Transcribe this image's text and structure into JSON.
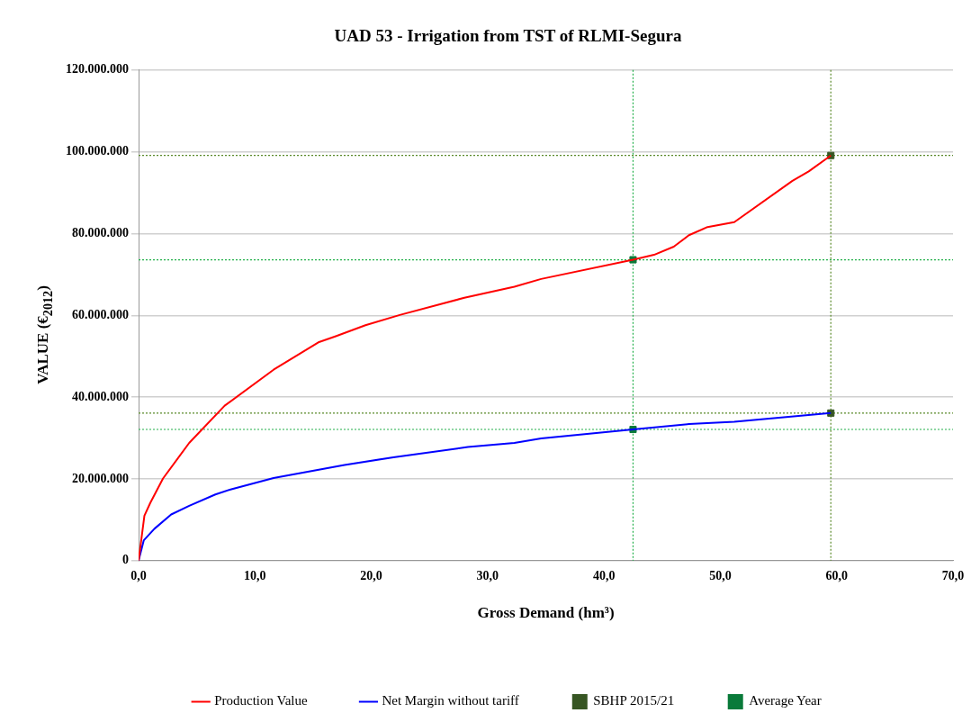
{
  "chart_data": {
    "type": "line",
    "title": "UAD 53 - Irrigation from TST of RLMI-Segura",
    "xlabel": "Gross Demand (hm³)",
    "ylabel": "VALUE  (€$_{2012}$)",
    "xlim": [
      0,
      70
    ],
    "xticks": [
      {
        "value": 0,
        "label": "0,0"
      },
      {
        "value": 10,
        "label": "10,0"
      },
      {
        "value": 20,
        "label": "20,0"
      },
      {
        "value": 30,
        "label": "30,0"
      },
      {
        "value": 40,
        "label": "40,0"
      },
      {
        "value": 50,
        "label": "50,0"
      },
      {
        "value": 60,
        "label": "60,0"
      },
      {
        "value": 70,
        "label": "70,0"
      }
    ],
    "ylim": [
      0,
      120000000
    ],
    "yticks": [
      0,
      {
        "value": 20000000,
        "label": "20.000.000"
      },
      {
        "value": 40000000,
        "label": "40.000.000"
      },
      {
        "value": 60000000,
        "label": "60.000.000"
      },
      {
        "value": 80000000,
        "label": "80.000.000"
      },
      {
        "value": 100000000,
        "label": "100.000.000"
      },
      {
        "value": 120000000,
        "label": "120.000.000"
      }
    ],
    "grid": "y",
    "legend": "bottom",
    "marker": "none",
    "line_style": "solid",
    "series": [
      {
        "name": "Production Value",
        "color": "#ff0000",
        "x": [
          0,
          0.5,
          1,
          2.1,
          4.35,
          7.4,
          11.6,
          15.45,
          16.95,
          19.5,
          22.45,
          28,
          32.3,
          34.6,
          42.5,
          44.3,
          46,
          47.3,
          48.9,
          51.2,
          56.2,
          57.6,
          59.5
        ],
        "values": [
          0,
          11000000,
          14100000,
          20100000,
          28800000,
          37900000,
          46700000,
          53400000,
          54900000,
          57600000,
          60100000,
          64300000,
          67000000,
          68900000,
          73600000,
          74800000,
          76800000,
          79600000,
          81600000,
          82800000,
          92900000,
          95200000,
          99100000
        ]
      },
      {
        "name": "Net Margin without tariff",
        "color": "#0000ff",
        "x": [
          0,
          0.45,
          1.36,
          2.8,
          4.35,
          6.6,
          7.9,
          11.6,
          17.7,
          21.9,
          28.3,
          32.3,
          34.6,
          42.5,
          47.3,
          51.2,
          59.5
        ],
        "values": [
          0,
          5000000,
          7800000,
          11300000,
          13400000,
          16200000,
          17400000,
          20200000,
          23400000,
          25300000,
          27800000,
          28800000,
          29900000,
          32100000,
          33400000,
          34000000,
          36100000
        ]
      },
      {
        "name": "SBHP 2015/21",
        "type": "scatter",
        "marker": "square",
        "color": "#375623",
        "x": [
          59.5,
          59.5
        ],
        "values": [
          99100000,
          36100000
        ]
      },
      {
        "name": "Average Year",
        "type": "scatter",
        "marker": "square",
        "color": "#0a7a3a",
        "x": [
          42.5,
          42.5
        ],
        "values": [
          73600000,
          32100000
        ]
      }
    ],
    "ref_lines": [
      {
        "axis": "y",
        "value": 99100000,
        "color": "#5a8a2a",
        "line_style": "dotted"
      },
      {
        "axis": "y",
        "value": 73600000,
        "color": "#22b04a",
        "line_style": "dotted"
      },
      {
        "axis": "y",
        "value": 36100000,
        "color": "#5a8a2a",
        "line_style": "dotted"
      },
      {
        "axis": "y",
        "value": 32100000,
        "color": "#22b04a",
        "line_style": "dotted"
      },
      {
        "axis": "x",
        "value": 42.5,
        "color": "#22b04a",
        "line_style": "dotted"
      },
      {
        "axis": "x",
        "value": 59.5,
        "color": "#5a8a2a",
        "line_style": "dotted"
      }
    ]
  }
}
